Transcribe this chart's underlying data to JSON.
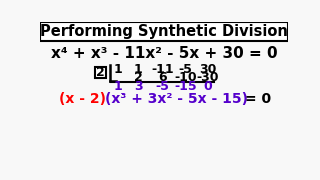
{
  "title": "Performing Synthetic Division",
  "title_color": "#000000",
  "title_border_color": "#000000",
  "title_bg": "#ffffff",
  "bg_color": "#f8f8f8",
  "divisor": "2",
  "row1": [
    "1",
    "1",
    "-11",
    "-5",
    "30"
  ],
  "row2": [
    "2",
    "6",
    "-10",
    "-30"
  ],
  "row3": [
    "1",
    "3",
    "-5",
    "-15",
    "0"
  ],
  "row1_color": "#000000",
  "row2_color": "#000000",
  "row3_color": "#5500cc",
  "result_red_color": "#ff0000",
  "result_purple_color": "#5500cc",
  "result_end_color": "#000000"
}
